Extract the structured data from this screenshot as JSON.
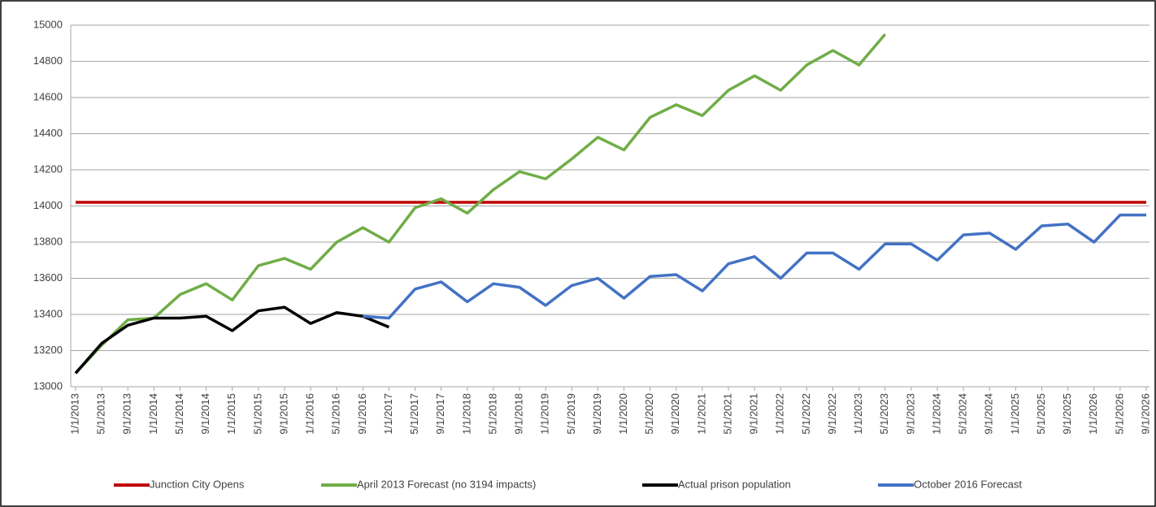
{
  "chart_data": {
    "type": "line",
    "categories": [
      "1/1/2013",
      "5/1/2013",
      "9/1/2013",
      "1/1/2014",
      "5/1/2014",
      "9/1/2014",
      "1/1/2015",
      "5/1/2015",
      "9/1/2015",
      "1/1/2016",
      "5/1/2016",
      "9/1/2016",
      "1/1/2017",
      "5/1/2017",
      "9/1/2017",
      "1/1/2018",
      "5/1/2018",
      "9/1/2018",
      "1/1/2019",
      "5/1/2019",
      "9/1/2019",
      "1/1/2020",
      "5/1/2020",
      "9/1/2020",
      "1/1/2021",
      "5/1/2021",
      "9/1/2021",
      "1/1/2022",
      "5/1/2022",
      "9/1/2022",
      "1/1/2023",
      "5/1/2023",
      "9/1/2023",
      "1/1/2024",
      "5/1/2024",
      "9/1/2024",
      "1/1/2025",
      "5/1/2025",
      "9/1/2025",
      "1/1/2026",
      "5/1/2026",
      "9/1/2026"
    ],
    "series": [
      {
        "name": "Junction City Opens",
        "color": "#c00000",
        "values": [
          14020,
          14020,
          14020,
          14020,
          14020,
          14020,
          14020,
          14020,
          14020,
          14020,
          14020,
          14020,
          14020,
          14020,
          14020,
          14020,
          14020,
          14020,
          14020,
          14020,
          14020,
          14020,
          14020,
          14020,
          14020,
          14020,
          14020,
          14020,
          14020,
          14020,
          14020,
          14020,
          14020,
          14020,
          14020,
          14020,
          14020,
          14020,
          14020,
          14020,
          14020,
          14020
        ]
      },
      {
        "name": "April 2013 Forecast (no 3194 impacts)",
        "color": "#70ad47",
        "values": [
          13075,
          13230,
          13370,
          13380,
          13510,
          13570,
          13480,
          13670,
          13710,
          13650,
          13800,
          13880,
          13800,
          13990,
          14040,
          13960,
          14090,
          14190,
          14150,
          14260,
          14380,
          14310,
          14490,
          14560,
          14500,
          14640,
          14720,
          14640,
          14780,
          14860,
          14780,
          14950,
          null,
          null,
          null,
          null,
          null,
          null,
          null,
          null,
          null,
          null
        ]
      },
      {
        "name": "Actual prison population",
        "color": "#000000",
        "values": [
          13075,
          13240,
          13340,
          13380,
          13380,
          13390,
          13310,
          13420,
          13440,
          13350,
          13410,
          13390,
          13330,
          null,
          null,
          null,
          null,
          null,
          null,
          null,
          null,
          null,
          null,
          null,
          null,
          null,
          null,
          null,
          null,
          null,
          null,
          null,
          null,
          null,
          null,
          null,
          null,
          null,
          null,
          null,
          null,
          null
        ]
      },
      {
        "name": "October 2016 Forecast",
        "color": "#4472c4",
        "values": [
          null,
          null,
          null,
          null,
          null,
          null,
          null,
          null,
          null,
          null,
          null,
          13390,
          13380,
          13540,
          13580,
          13470,
          13570,
          13550,
          13450,
          13560,
          13600,
          13490,
          13610,
          13620,
          13530,
          13680,
          13720,
          13600,
          13740,
          13740,
          13650,
          13790,
          13790,
          13700,
          13840,
          13850,
          13760,
          13890,
          13900,
          13800,
          13950,
          13950
        ]
      }
    ],
    "ylim": [
      13000,
      15000
    ],
    "yticks": [
      13000,
      13200,
      13400,
      13600,
      13800,
      14000,
      14200,
      14400,
      14600,
      14800,
      15000
    ],
    "grid": true,
    "legend": "bottom"
  }
}
